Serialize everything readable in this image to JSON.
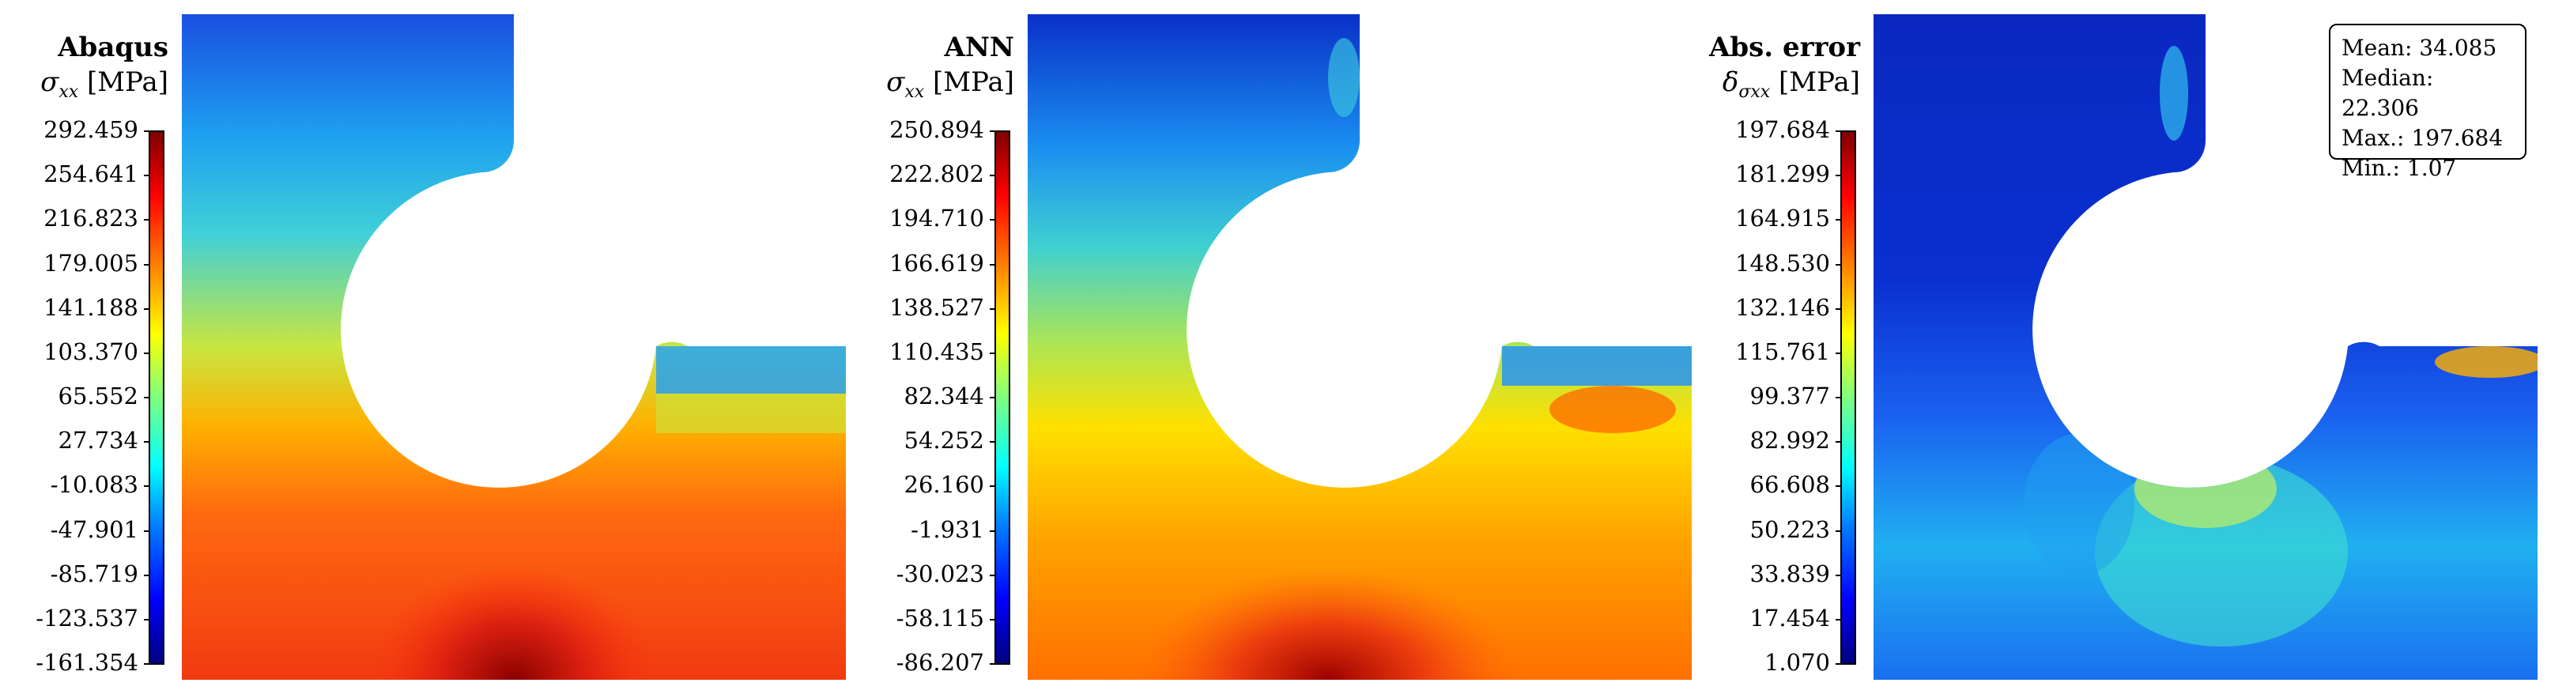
{
  "panels": [
    {
      "title": "Abaqus",
      "quantity_symbol": "σ",
      "quantity_sub": "xx",
      "unit": "[MPa]",
      "ticks": [
        "292.459",
        "254.641",
        "216.823",
        "179.005",
        "141.188",
        "103.370",
        "65.552",
        "27.734",
        "-10.083",
        "-47.901",
        "-85.719",
        "-123.537",
        "-161.354"
      ]
    },
    {
      "title": "ANN",
      "quantity_symbol": "σ",
      "quantity_sub": "xx",
      "unit": "[MPa]",
      "ticks": [
        "250.894",
        "222.802",
        "194.710",
        "166.619",
        "138.527",
        "110.435",
        "82.344",
        "54.252",
        "26.160",
        "-1.931",
        "-30.023",
        "-58.115",
        "-86.207"
      ]
    },
    {
      "title": "Abs. error",
      "quantity_symbol": "δ",
      "quantity_sub": "σxx",
      "unit": "[MPa]",
      "ticks": [
        "197.684",
        "181.299",
        "164.915",
        "148.530",
        "132.146",
        "115.761",
        "99.377",
        "82.992",
        "66.608",
        "50.223",
        "33.839",
        "17.454",
        "1.070"
      ]
    }
  ],
  "stats": {
    "mean": "Mean: 34.085",
    "median": "Median: 22.306",
    "max": "Max.: 197.684",
    "min": "Min.: 1.07"
  },
  "colormap": "jet"
}
